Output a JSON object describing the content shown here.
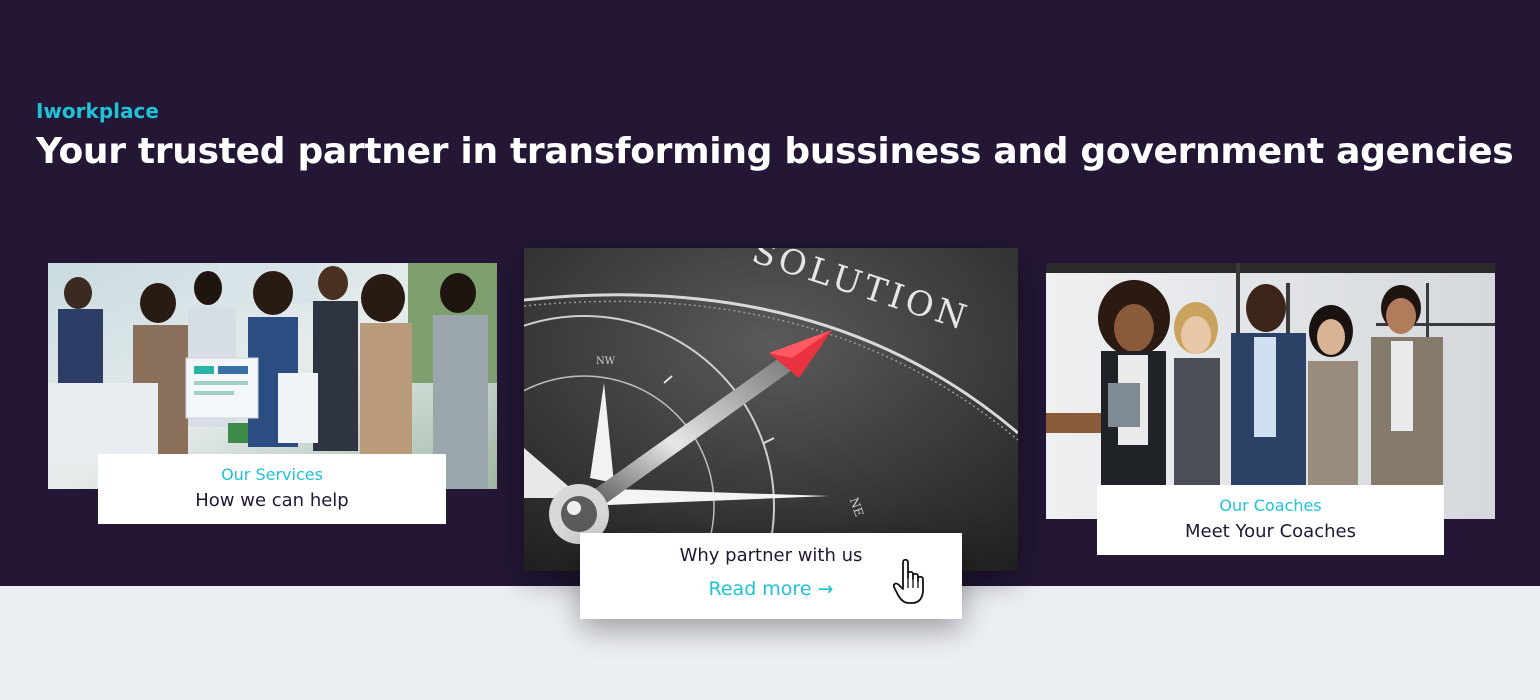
{
  "header": {
    "eyebrow": "Iworkplace",
    "headline": "Your trusted partner in transforming bussiness and government agencies"
  },
  "cards": [
    {
      "kicker": "Our Services",
      "title": "How we can help",
      "image": "team-meeting-photo"
    },
    {
      "title": "Why partner with us",
      "link": "Read more →",
      "image": "compass-solution-photo",
      "image_text": "SOLUTION"
    },
    {
      "kicker": "Our Coaches",
      "title": "Meet Your Coaches",
      "image": "coaches-group-photo"
    }
  ],
  "cursor_icon": "hand-pointer-icon",
  "colors": {
    "hero_bg": "#231735",
    "accent": "#1fc2d6",
    "page_bg": "#eceff4"
  }
}
